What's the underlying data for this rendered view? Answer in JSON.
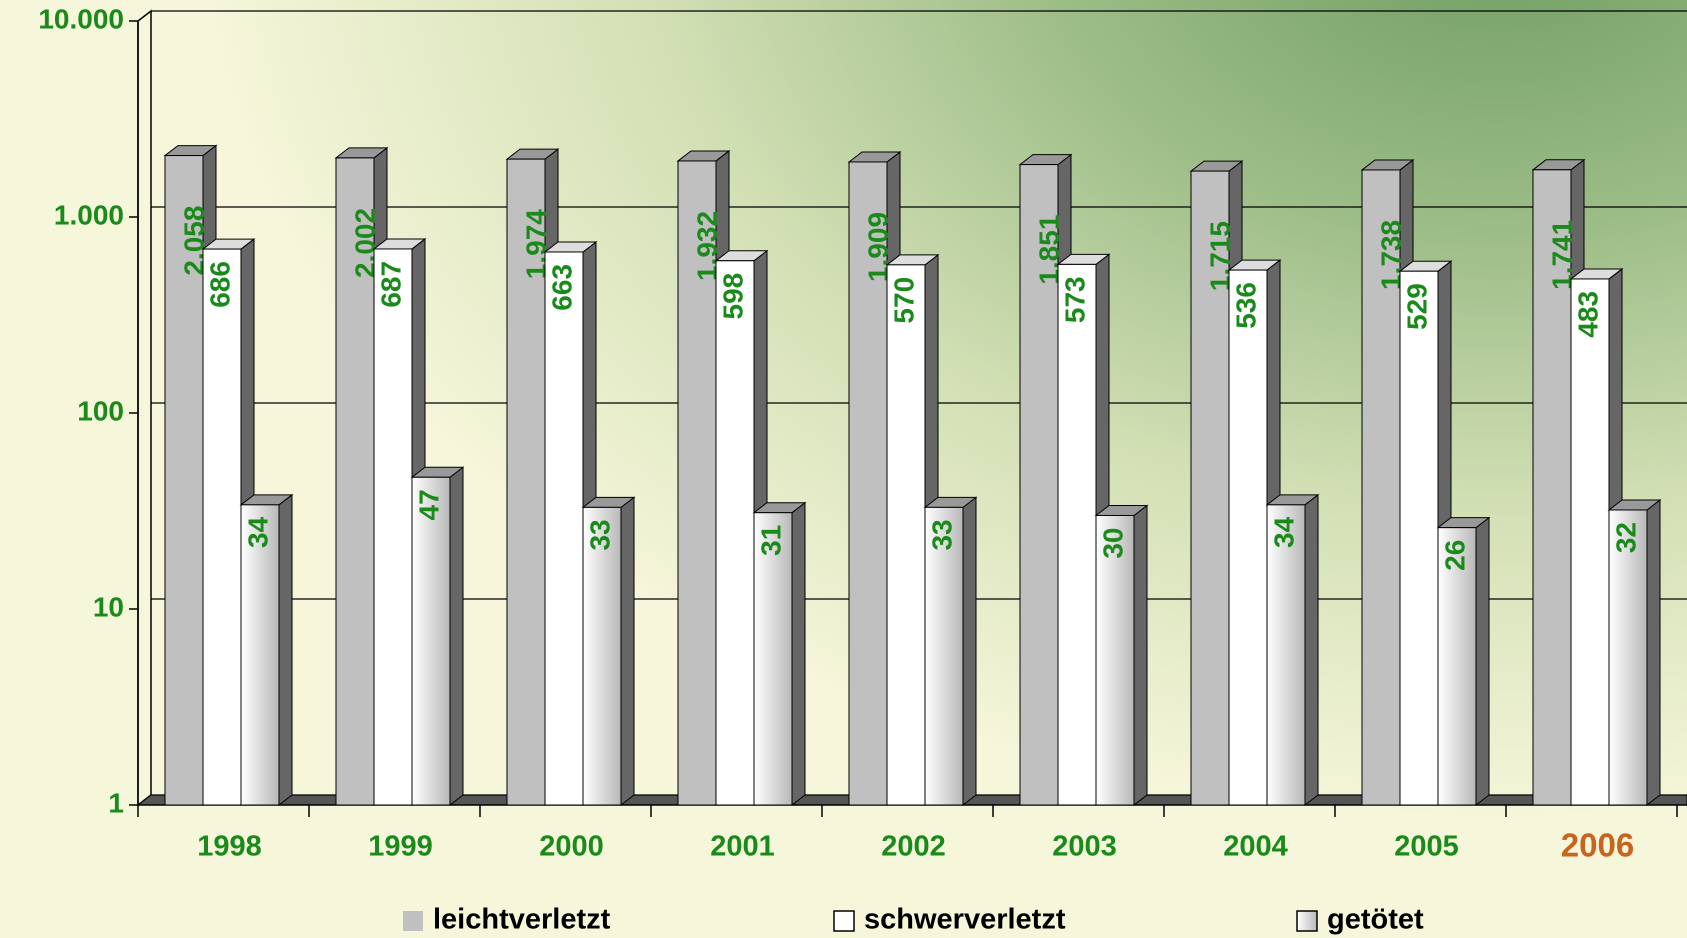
{
  "chart_data": {
    "type": "bar3d",
    "log_scale": true,
    "grid": true,
    "categories": [
      "1998",
      "1999",
      "2000",
      "2001",
      "2002",
      "2003",
      "2004",
      "2005",
      "2006"
    ],
    "category_label_colors": [
      "#1a8a1a",
      "#1a8a1a",
      "#1a8a1a",
      "#1a8a1a",
      "#1a8a1a",
      "#1a8a1a",
      "#1a8a1a",
      "#1a8a1a",
      "#c8641e"
    ],
    "label_color": "#1a8a1a",
    "series": [
      {
        "name": "leichtverletzt",
        "color": "#c0c0c0",
        "values": [
          2058,
          2002,
          1974,
          1932,
          1909,
          1851,
          1715,
          1738,
          1741
        ],
        "value_labels": [
          "2.058",
          "2.002",
          "1.974",
          "1.932",
          "1.909",
          "1.851",
          "1.715",
          "1.738",
          "1.741"
        ]
      },
      {
        "name": "schwerverletzt",
        "color": "#ffffff",
        "values": [
          686,
          687,
          663,
          598,
          570,
          573,
          536,
          529,
          483
        ]
      },
      {
        "name": "getötet",
        "color": "#d0d0d0",
        "values": [
          34,
          47,
          33,
          31,
          33,
          30,
          34,
          26,
          32
        ]
      }
    ],
    "ylim": [
      1,
      10000
    ],
    "yticks": [
      1,
      10,
      100,
      {
        "value": 1000,
        "label": "1.000"
      },
      {
        "value": 10000,
        "label": "10.000"
      }
    ]
  }
}
